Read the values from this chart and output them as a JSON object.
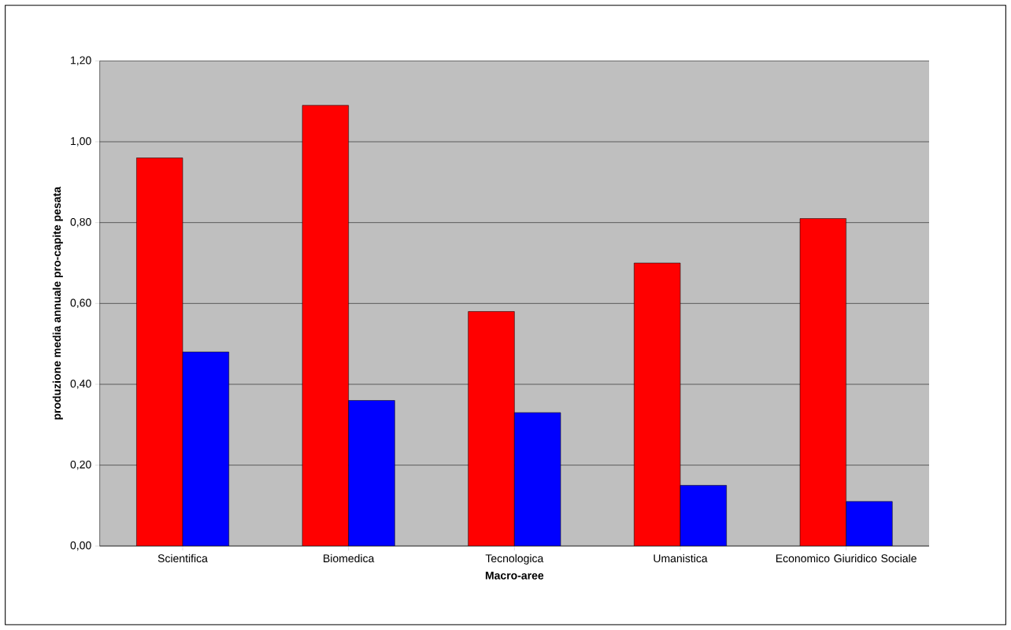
{
  "chart_data": {
    "type": "bar",
    "xlabel": "Macro-aree",
    "ylabel": "produzione media annuale pro-capite pesata",
    "categories": [
      "Scientifica",
      "Biomedica",
      "Tecnologica",
      "Umanistica",
      "Economico Giuridico Sociale"
    ],
    "series": [
      {
        "color": "#ff0000",
        "values": [
          0.96,
          1.09,
          0.58,
          0.7,
          0.81
        ]
      },
      {
        "color": "#0000ff",
        "values": [
          0.48,
          0.36,
          0.33,
          0.15,
          0.11
        ]
      }
    ],
    "ylim": [
      0,
      1.2
    ],
    "yticks": [
      {
        "value": 0,
        "label": "0,00"
      },
      {
        "value": 0.2,
        "label": "0,20"
      },
      {
        "value": 0.4,
        "label": "0,40"
      },
      {
        "value": 0.6,
        "label": "0,60"
      },
      {
        "value": 0.8,
        "label": "0,80"
      },
      {
        "value": 1.0,
        "label": "1,00"
      },
      {
        "value": 1.2,
        "label": "1,20"
      }
    ],
    "grid": "y"
  }
}
